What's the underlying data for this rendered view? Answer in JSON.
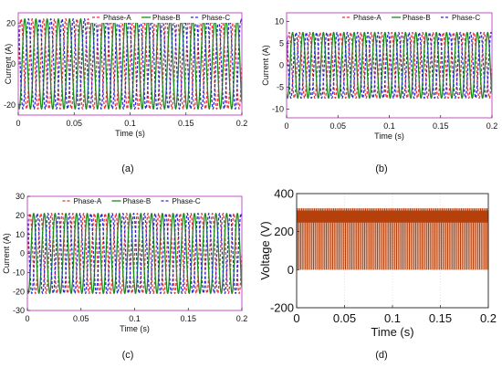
{
  "panels": {
    "a": {
      "caption": "(a)"
    },
    "b": {
      "caption": "(b)"
    },
    "c": {
      "caption": "(c)"
    },
    "d": {
      "caption": "(d)"
    }
  },
  "colors": {
    "phase_a": "#e8303a",
    "phase_b": "#1a8a1a",
    "phase_c": "#2a2ad0",
    "voltage": "#b5400c",
    "frame": "#c040c0"
  },
  "chart_data": [
    {
      "type": "line",
      "panel": "a",
      "xlabel": "Time (s)",
      "ylabel": "Current (A)",
      "xlim": [
        0,
        0.2
      ],
      "ylim": [
        -25,
        25
      ],
      "xticks": [
        0,
        0.05,
        0.1,
        0.15,
        0.2
      ],
      "xtick_labels": [
        "0",
        "0.05",
        "0.1",
        "0.15",
        "0.2"
      ],
      "yticks": [
        -20,
        0,
        20
      ],
      "ytick_labels": [
        "-20",
        "0",
        "20"
      ],
      "legend_position": "top-right",
      "series": [
        {
          "name": "Phase-A",
          "waveform": "sine",
          "amplitude": 22,
          "frequency_hz": 100,
          "phase_deg": 0,
          "line_style": "dashed",
          "color": "#e8303a"
        },
        {
          "name": "Phase-B",
          "waveform": "sine",
          "amplitude": 22,
          "frequency_hz": 100,
          "phase_deg": -120,
          "line_style": "solid",
          "color": "#1a8a1a"
        },
        {
          "name": "Phase-C",
          "waveform": "sine",
          "amplitude": 22,
          "frequency_hz": 100,
          "phase_deg": 120,
          "line_style": "dashed",
          "color": "#2a2ad0"
        }
      ]
    },
    {
      "type": "line",
      "panel": "b",
      "xlabel": "Time (s)",
      "ylabel": "Current (A)",
      "xlim": [
        0,
        0.2
      ],
      "ylim": [
        -12,
        12
      ],
      "xticks": [
        0,
        0.05,
        0.1,
        0.15,
        0.2
      ],
      "xtick_labels": [
        "0",
        "0.05",
        "0.1",
        "0.15",
        "0.2"
      ],
      "yticks": [
        -10,
        -5,
        0,
        5,
        10
      ],
      "ytick_labels": [
        "-10",
        "-5",
        "0",
        "5",
        "10"
      ],
      "legend_position": "top-right",
      "series": [
        {
          "name": "Phase-A",
          "waveform": "sine",
          "amplitude": 7.5,
          "frequency_hz": 100,
          "phase_deg": 0,
          "line_style": "dashed",
          "color": "#e8303a"
        },
        {
          "name": "Phase-B",
          "waveform": "sine",
          "amplitude": 7.5,
          "frequency_hz": 100,
          "phase_deg": -120,
          "line_style": "solid",
          "color": "#1a8a1a"
        },
        {
          "name": "Phase-C",
          "waveform": "sine",
          "amplitude": 7.5,
          "frequency_hz": 100,
          "phase_deg": 120,
          "line_style": "dashed",
          "color": "#2a2ad0"
        }
      ]
    },
    {
      "type": "line",
      "panel": "c",
      "xlabel": "Time (s)",
      "ylabel": "Current (A)",
      "xlim": [
        0,
        0.2
      ],
      "ylim": [
        -30,
        30
      ],
      "xticks": [
        0,
        0.05,
        0.1,
        0.15,
        0.2
      ],
      "xtick_labels": [
        "0",
        "0.05",
        "0.1",
        "0.15",
        "0.2"
      ],
      "yticks": [
        -30,
        -20,
        -10,
        0,
        10,
        20,
        30
      ],
      "ytick_labels": [
        "-30",
        "-20",
        "-10",
        "0",
        "10",
        "20",
        "30"
      ],
      "legend_position": "top",
      "series": [
        {
          "name": "Phase-A",
          "waveform": "sine",
          "amplitude": 21,
          "frequency_hz": 100,
          "phase_deg": 0,
          "line_style": "dashed",
          "color": "#e8303a"
        },
        {
          "name": "Phase-B",
          "waveform": "sine",
          "amplitude": 21,
          "frequency_hz": 100,
          "phase_deg": -120,
          "line_style": "solid",
          "color": "#1a8a1a"
        },
        {
          "name": "Phase-C",
          "waveform": "sine",
          "amplitude": 21,
          "frequency_hz": 100,
          "phase_deg": 120,
          "line_style": "dashed",
          "color": "#2a2ad0"
        }
      ]
    },
    {
      "type": "line",
      "panel": "d",
      "xlabel": "Time (s)",
      "ylabel": "Voltage (V)",
      "xlim": [
        0,
        0.2
      ],
      "ylim": [
        -200,
        400
      ],
      "xticks": [
        0,
        0.05,
        0.1,
        0.15,
        0.2
      ],
      "xtick_labels": [
        "0",
        "0.05",
        "0.1",
        "0.15",
        "0.2"
      ],
      "yticks": [
        -200,
        0,
        200,
        400
      ],
      "ytick_labels": [
        "-200",
        "0",
        "200",
        "400"
      ],
      "grid": true,
      "series": [
        {
          "waveform": "pwm",
          "dc_level": 250,
          "peak": 320,
          "min": 0,
          "switching_frequency_hz": 600,
          "color": "#b5400c"
        }
      ]
    }
  ]
}
